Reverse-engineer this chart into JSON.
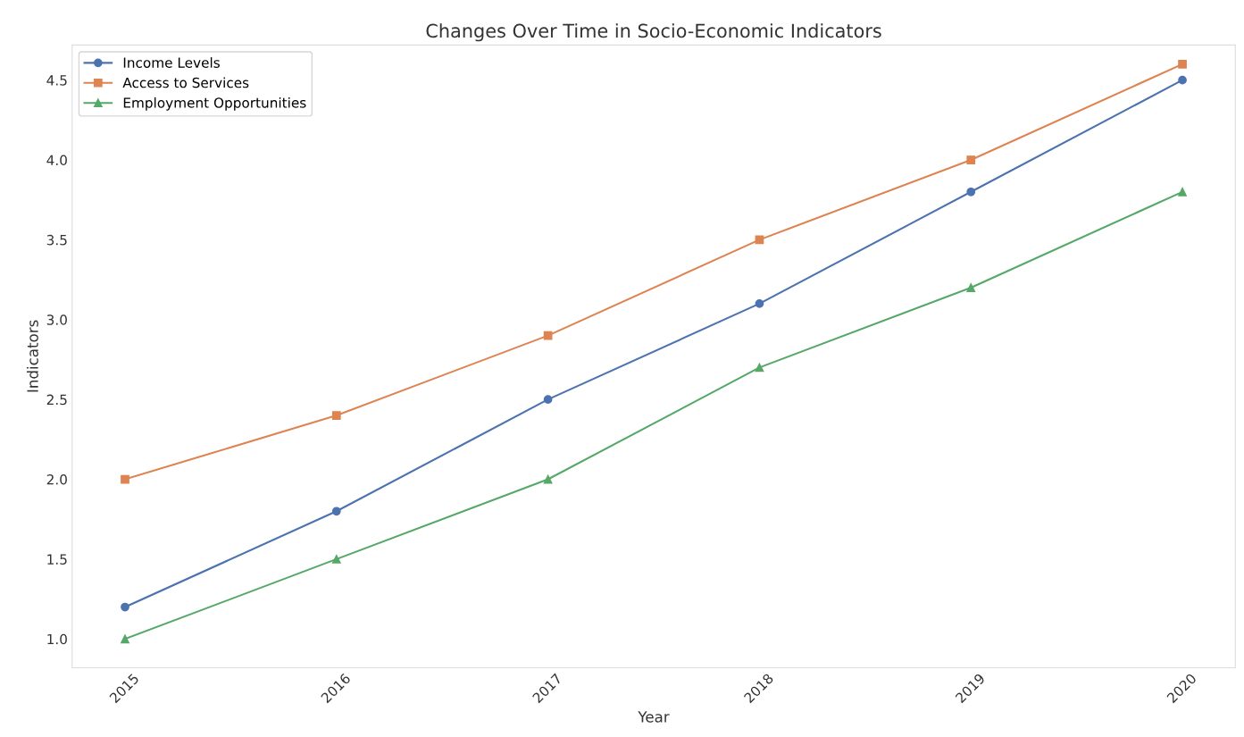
{
  "chart_data": {
    "type": "line",
    "title": "Changes Over Time in Socio-Economic Indicators",
    "xlabel": "Year",
    "ylabel": "Indicators",
    "x": [
      2015,
      2016,
      2017,
      2018,
      2019,
      2020
    ],
    "series": [
      {
        "name": "Income Levels",
        "color": "#4c72b0",
        "marker": "circle",
        "values": [
          1.2,
          1.8,
          2.5,
          3.1,
          3.8,
          4.5
        ]
      },
      {
        "name": "Access to Services",
        "color": "#dd8452",
        "marker": "square",
        "values": [
          2.0,
          2.4,
          2.9,
          3.5,
          4.0,
          4.6
        ]
      },
      {
        "name": "Employment Opportunities",
        "color": "#55a868",
        "marker": "triangle",
        "values": [
          1.0,
          1.5,
          2.0,
          2.7,
          3.2,
          3.8
        ]
      }
    ],
    "xlim": [
      2014.75,
      2020.25
    ],
    "xticks": [
      2015,
      2016,
      2017,
      2018,
      2019,
      2020
    ],
    "ylim": [
      0.82,
      4.72
    ],
    "yticks": [
      {
        "value": 1,
        "label": "1.0"
      },
      {
        "value": 1.5,
        "label": "1.5"
      },
      {
        "value": 2,
        "label": "2.0"
      },
      {
        "value": 2.5,
        "label": "2.5"
      },
      {
        "value": 3,
        "label": "3.0"
      },
      {
        "value": 3.5,
        "label": "3.5"
      },
      {
        "value": 4,
        "label": "4.0"
      },
      {
        "value": 4.5,
        "label": "4.5"
      }
    ],
    "grid": false,
    "legend": "top left",
    "line_style": "solid"
  }
}
